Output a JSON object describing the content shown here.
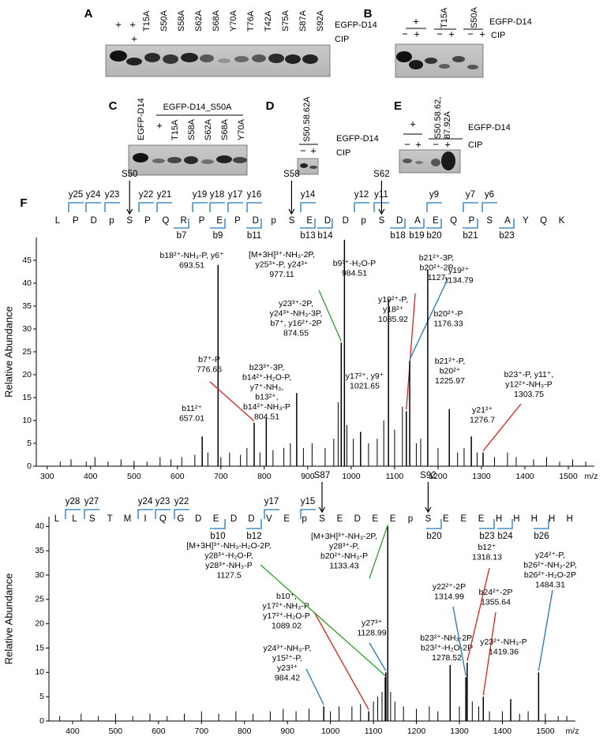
{
  "panels": {
    "A": {
      "label": "A",
      "marks": [
        "+",
        "+",
        "+"
      ],
      "lanes": [
        "T15A",
        "S50A",
        "S58A",
        "S62A",
        "S68A",
        "Y70A",
        "T76A",
        "T42A",
        "S75A",
        "S87A",
        "S92A"
      ],
      "rows": [
        "EGFP-D14",
        "CIP"
      ]
    },
    "B": {
      "label": "B",
      "marks": [
        "+",
        "−",
        "+",
        "−",
        "+",
        "−",
        "+"
      ],
      "lanes": [
        "T15A",
        "S50A"
      ],
      "rows": [
        "EGFP-D14",
        "CIP"
      ]
    },
    "C": {
      "label": "C",
      "lanes": [
        "EGFP-D14",
        "T15A",
        "S58A",
        "S62A",
        "S68A",
        "Y70A"
      ],
      "group": "EGFP-D14_S50A",
      "marks": [
        "+"
      ]
    },
    "D": {
      "label": "D",
      "lanes": [
        "S50.58.62A"
      ],
      "marks": [
        "−",
        "+"
      ],
      "rows": [
        "EGFP-D14",
        "CIP"
      ]
    },
    "E": {
      "label": "E",
      "lanes": [
        "S50.58.62,",
        "87.92A"
      ],
      "marks": [
        "+",
        "−",
        "+",
        "−",
        "+"
      ],
      "rows": [
        "EGFP-D14",
        "CIP"
      ]
    },
    "F": {
      "label": "F"
    }
  },
  "chart_data": [
    {
      "type": "spectrum",
      "x_label": "m/z",
      "y_label": "Relative Abundance",
      "color": "#000000",
      "xlim": [
        275,
        1560
      ],
      "xticks": [
        300,
        400,
        500,
        600,
        700,
        800,
        900,
        1000,
        1100,
        1200,
        1300,
        1400,
        1500
      ],
      "ylim": [
        0,
        50
      ],
      "yticks": [
        0,
        5,
        10,
        15,
        20,
        25,
        30,
        35,
        40,
        45
      ],
      "x": [
        330,
        355,
        390,
        410,
        440,
        470,
        500,
        530,
        560,
        585,
        610,
        640,
        670,
        700,
        720,
        745,
        760,
        790,
        820,
        845,
        860,
        890,
        910,
        940,
        960,
        970,
        990,
        1005,
        1040,
        1060,
        1075,
        1100,
        1118,
        1150,
        1160,
        1200,
        1245,
        1260,
        1290,
        1330,
        1360,
        1380,
        1420,
        1450,
        1480,
        1510,
        1540
      ],
      "values": [
        1,
        1.5,
        1,
        2,
        1,
        1.5,
        1.2,
        1,
        2,
        1.5,
        2,
        2.5,
        3,
        2,
        3,
        2.5,
        4,
        3,
        3.5,
        4,
        5,
        4,
        5,
        4,
        6,
        14,
        9,
        6,
        5,
        6,
        10,
        8,
        13,
        5,
        6,
        4,
        3,
        4,
        3,
        2,
        3,
        2,
        1.5,
        2,
        1,
        1.5,
        1
      ],
      "annotations": [
        {
          "text": [
            "b11²⁺"
          ],
          "x": 657.01,
          "y": 6.5,
          "color": "#e3201b"
        },
        {
          "text": [
            "b18²⁺-NH₃-P, y6⁺"
          ],
          "x": 693.51,
          "y": 44,
          "color": "#e3201b"
        },
        {
          "text": [
            "b7⁺-P"
          ],
          "x": 776.66,
          "y": 9.5,
          "color": "#e3201b"
        },
        {
          "text": [
            "b23³⁺-3P,",
            "b14²⁺-H₂O-P,",
            "y7⁺-NH₃,",
            "b13²⁺,",
            "b14²⁺-NH₃-P"
          ],
          "x": 804.51,
          "y": 10.5,
          "color": "#e3201b"
        },
        {
          "text": [
            "y23³⁺-2P,",
            "y24³⁺-NH₃-3P,",
            "b7⁺, y16²⁺-2P"
          ],
          "x": 874.55,
          "y": 16,
          "color": "#1f77c4"
        },
        {
          "text": [
            "[M+3H]³⁺-NH₃-2P,",
            "y25³⁺-P, y24³⁺"
          ],
          "x": 977.11,
          "y": 27,
          "color": "#2ca02c"
        },
        {
          "text": [
            "b9³⁺-H₂O-P"
          ],
          "x": 984.51,
          "y": 49.5,
          "color": "#e3201b"
        },
        {
          "text": [
            "y17²⁺, y9⁺"
          ],
          "x": 1021.65,
          "y": 7.5,
          "color": "#1f77c4"
        },
        {
          "text": [
            "y19²⁺-P,",
            "y18²⁺"
          ],
          "x": 1085.92,
          "y": 36.5,
          "color": "#1f77c4"
        },
        {
          "text": [
            "b21²⁺-3P,",
            "b20²⁺-2P"
          ],
          "x": 1127,
          "y": 12,
          "color": "#e3201b"
        },
        {
          "text": [
            "y19²⁺"
          ],
          "x": 1134.79,
          "y": 23,
          "color": "#1f77c4"
        },
        {
          "text": [
            "b20²⁺-P"
          ],
          "x": 1176.33,
          "y": 43,
          "color": "#e3201b"
        },
        {
          "text": [
            "b21²⁺-P,",
            "b20²⁺"
          ],
          "x": 1225.97,
          "y": 12.5,
          "color": "#e3201b"
        },
        {
          "text": [
            "y21²⁺"
          ],
          "x": 1276.7,
          "y": 6.5,
          "color": "#1f77c4"
        },
        {
          "text": [
            "b23⁺-P, y11⁺,",
            "y12²⁺-NH₃-P"
          ],
          "x": 1303.75,
          "y": 3,
          "color": "#e3201b"
        }
      ],
      "sequence": {
        "residues": [
          "L",
          "P",
          "D",
          "p",
          "S",
          "P",
          "Q",
          "R",
          "P",
          "E",
          "P",
          "D",
          "p",
          "S",
          "E",
          "D",
          "D",
          "p",
          "S",
          "D",
          "A",
          "E",
          "Q",
          "P",
          "S",
          "A",
          "Y",
          "Q",
          "K"
        ],
        "y_ions": [
          "y25",
          "y24",
          "y23",
          "y22",
          "y21",
          "y19",
          "y18",
          "y17",
          "y16",
          "y14",
          "y12",
          "y11",
          "y9",
          "y7",
          "y6"
        ],
        "b_ions": [
          "b7",
          "b9",
          "b11",
          "b13",
          "b14",
          "b18",
          "b19",
          "b20",
          "b21",
          "b23"
        ],
        "sites": [
          "S50",
          "S58",
          "S62"
        ],
        "site_color": "#e3201b",
        "ion_color": "#1f77c4"
      }
    },
    {
      "type": "spectrum",
      "x_label": "m/z",
      "y_label": "Relative Abundance",
      "color": "#000000",
      "xlim": [
        345,
        1570
      ],
      "xticks": [
        400,
        500,
        600,
        700,
        800,
        900,
        1000,
        1100,
        1200,
        1300,
        1400,
        1500
      ],
      "ylim": [
        0,
        42
      ],
      "yticks": [
        0,
        5,
        10,
        15,
        20,
        25,
        30,
        35,
        40
      ],
      "x": [
        370,
        420,
        460,
        500,
        540,
        580,
        620,
        660,
        700,
        740,
        780,
        820,
        860,
        890,
        920,
        950,
        1000,
        1020,
        1050,
        1070,
        1100,
        1110,
        1120,
        1140,
        1150,
        1170,
        1200,
        1230,
        1250,
        1300,
        1330,
        1345,
        1370,
        1400,
        1440,
        1460,
        1500,
        1530,
        1550
      ],
      "values": [
        1,
        1.5,
        1,
        1.5,
        1,
        1.5,
        1,
        1.5,
        2,
        1.5,
        2,
        1.5,
        2,
        2.5,
        2,
        2.5,
        2,
        3,
        3,
        3.5,
        4,
        5,
        6,
        6,
        4,
        3,
        2.5,
        3,
        2,
        3,
        4,
        3,
        2,
        2,
        1.5,
        2,
        1.5,
        1,
        1
      ],
      "annotations": [
        {
          "text": [
            "y24³⁺-NH₃-P,",
            "y15²⁺-P,",
            "y23³⁺"
          ],
          "x": 984.42,
          "y": 3,
          "color": "#1f77c4"
        },
        {
          "text": [
            "b10⁺,",
            "y17²⁺-NH₃-P,",
            "y17²⁺-H₂O-P"
          ],
          "x": 1089.02,
          "y": 2,
          "color": "#e3201b"
        },
        {
          "text": [
            "[M+3H]³⁺-NH₃-H₂O-2P,",
            "y28³⁺-H₂O-P,",
            "y28³⁺-NH₃-P"
          ],
          "x": 1127.5,
          "y": 9,
          "color": "#2ca02c"
        },
        {
          "text": [
            "y27³⁺"
          ],
          "x": 1128.99,
          "y": 10,
          "color": "#1f77c4"
        },
        {
          "text": [
            "[M+3H]³⁺-NH₃-2P,",
            "y28³⁺-P,",
            "b20²⁺-NH₃-P"
          ],
          "x": 1133.43,
          "y": 40,
          "color": "#2ca02c"
        },
        {
          "text": [
            "b23²⁺-NH₃-2P,",
            "b23²⁺-H₂O-2P"
          ],
          "x": 1278.52,
          "y": 11.5,
          "color": "#e3201b"
        },
        {
          "text": [
            "y22²⁺-2P"
          ],
          "x": 1314.99,
          "y": 9,
          "color": "#1f77c4"
        },
        {
          "text": [
            "b12⁺"
          ],
          "x": 1318.13,
          "y": 12,
          "color": "#e3201b"
        },
        {
          "text": [
            "b24²⁺-2P"
          ],
          "x": 1355.64,
          "y": 5,
          "color": "#e3201b"
        },
        {
          "text": [
            "y23²⁺-NH₃-P"
          ],
          "x": 1419.36,
          "y": 4.5,
          "color": "#1f77c4"
        },
        {
          "text": [
            "y24²⁺-P,",
            "b26²⁺-NH₃-2P,",
            "b26²⁺-H₂O-2P"
          ],
          "x": 1484.31,
          "y": 10,
          "color": "#1f77c4"
        }
      ],
      "sequence": {
        "residues": [
          "L",
          "L",
          "S",
          "T",
          "M",
          "I",
          "Q",
          "G",
          "D",
          "E",
          "D",
          "D",
          "V",
          "E",
          "p",
          "S",
          "E",
          "D",
          "E",
          "E",
          "p",
          "S",
          "E",
          "E",
          "E",
          "H",
          "H",
          "H",
          "H",
          "H"
        ],
        "y_ions": [
          "y28",
          "y27",
          "y24",
          "y23",
          "y22",
          "y17",
          "y15"
        ],
        "b_ions": [
          "b10",
          "b12",
          "b20",
          "b23",
          "b24",
          "b26"
        ],
        "sites": [
          "S87",
          "S92"
        ],
        "site_color": "#e3201b",
        "ion_color": "#1f77c4"
      }
    }
  ]
}
